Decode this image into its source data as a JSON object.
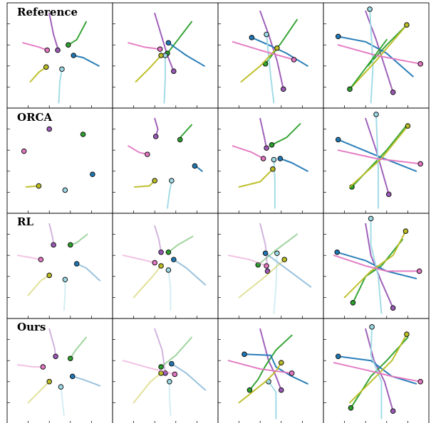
{
  "figure": {
    "rows": [
      {
        "label": "Reference"
      },
      {
        "label": "ORCA"
      },
      {
        "label": "RL"
      },
      {
        "label": "Ours"
      }
    ],
    "columns_per_row": 4,
    "agent_colors": {
      "purple": "#9b59b6",
      "green": "#2ca02c",
      "blue": "#1f77b4",
      "cyan": "#9edae5",
      "olive": "#bcbd22",
      "pink": "#e377c2"
    }
  }
}
